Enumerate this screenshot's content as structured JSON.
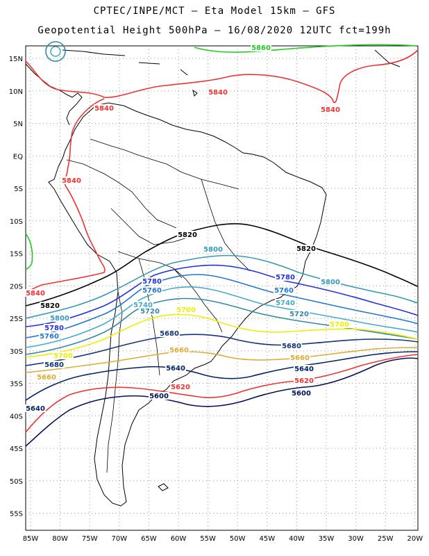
{
  "header": {
    "title_line1": "CPTEC/INPE/MCT –  Eta Model 15km – GFS",
    "title_line2": "Geopotential Height 500hPa – 16/08/2020 12UTC fct=199h"
  },
  "map": {
    "lat_ticks": [
      "15N",
      "10N",
      "5N",
      "EQ",
      "5S",
      "10S",
      "15S",
      "20S",
      "25S",
      "30S",
      "35S",
      "40S",
      "45S",
      "50S",
      "55S"
    ],
    "lon_ticks": [
      "85W",
      "80W",
      "75W",
      "70W",
      "65W",
      "60W",
      "55W",
      "50W",
      "45W",
      "40W",
      "35W",
      "30W",
      "25W",
      "20W"
    ],
    "grid": "dotted",
    "colors": {
      "c5860": "#22cc22",
      "c5840": "#ee3333",
      "c5820": "#000000",
      "c5800": "#3399bb",
      "c5780": "#2233dd",
      "c5760": "#2277cc",
      "c5740": "#44aacc",
      "c5720": "#3388aa",
      "c5700": "#eeee00",
      "c5680": "#113377",
      "c5660": "#ddaa33",
      "c5640": "#002266",
      "c5620": "#ee3333",
      "c5600": "#001155"
    },
    "contour_labels": [
      {
        "id": "l5860a",
        "text": "5860"
      },
      {
        "id": "l5840a",
        "text": "5840"
      },
      {
        "id": "l5840b",
        "text": "5840"
      },
      {
        "id": "l5840c",
        "text": "5840"
      },
      {
        "id": "l5840d",
        "text": "5840"
      },
      {
        "id": "l5840e",
        "text": "5840"
      },
      {
        "id": "l5820a",
        "text": "5820"
      },
      {
        "id": "l5820b",
        "text": "5820"
      },
      {
        "id": "l5820c",
        "text": "5820"
      },
      {
        "id": "l5800a",
        "text": "5800"
      },
      {
        "id": "l5800b",
        "text": "5800"
      },
      {
        "id": "l5800c",
        "text": "5800"
      },
      {
        "id": "l5780a",
        "text": "5780"
      },
      {
        "id": "l5780b",
        "text": "5780"
      },
      {
        "id": "l5780c",
        "text": "5780"
      },
      {
        "id": "l5760a",
        "text": "5760"
      },
      {
        "id": "l5760b",
        "text": "5760"
      },
      {
        "id": "l5760c",
        "text": "5760"
      },
      {
        "id": "l5740a",
        "text": "5740"
      },
      {
        "id": "l5740b",
        "text": "5740"
      },
      {
        "id": "l5720a",
        "text": "5720"
      },
      {
        "id": "l5720b",
        "text": "5720"
      },
      {
        "id": "l5700a",
        "text": "5700"
      },
      {
        "id": "l5700b",
        "text": "5700"
      },
      {
        "id": "l5700c",
        "text": "5700"
      },
      {
        "id": "l5680a",
        "text": "5680"
      },
      {
        "id": "l5680b",
        "text": "5680"
      },
      {
        "id": "l5680c",
        "text": "5680"
      },
      {
        "id": "l5660a",
        "text": "5660"
      },
      {
        "id": "l5660b",
        "text": "5660"
      },
      {
        "id": "l5660c",
        "text": "5660"
      },
      {
        "id": "l5640a",
        "text": "5640"
      },
      {
        "id": "l5640b",
        "text": "5640"
      },
      {
        "id": "l5640c",
        "text": "5640"
      },
      {
        "id": "l5620a",
        "text": "5620"
      },
      {
        "id": "l5620b",
        "text": "5620"
      },
      {
        "id": "l5600a",
        "text": "5600"
      },
      {
        "id": "l5600b",
        "text": "5600"
      }
    ]
  }
}
